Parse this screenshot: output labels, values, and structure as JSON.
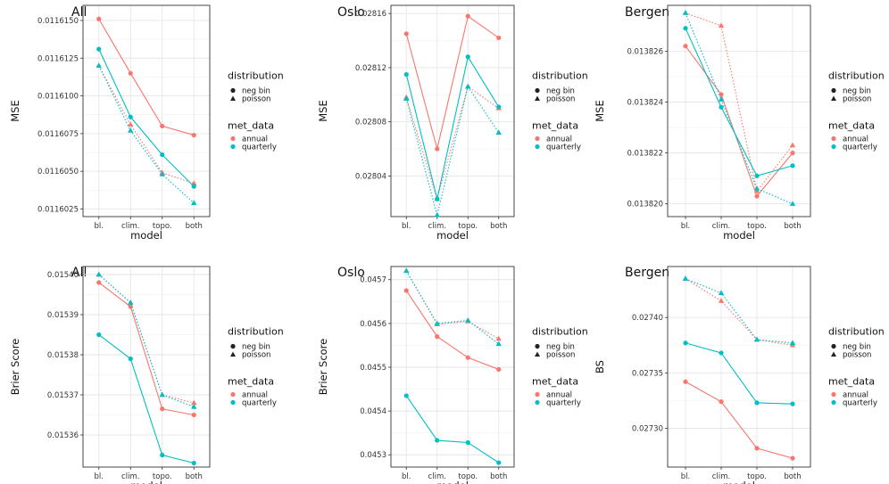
{
  "colors": {
    "annual": "#f8766d",
    "quarterly": "#00bfc4",
    "grid": "#e6e6e6",
    "frame": "#333333"
  },
  "legend": {
    "distribution_title": "distribution",
    "distribution_items": [
      "neg bin",
      "poisson"
    ],
    "met_title": "met_data",
    "met_items": [
      "annual",
      "quarterly"
    ]
  },
  "chart_data": [
    {
      "type": "line",
      "title": "All",
      "xlabel": "model",
      "ylabel": "MSE",
      "categories": [
        "bl.",
        "clim.",
        "topo.",
        "both"
      ],
      "ylim": [
        0.011602,
        0.011616
      ],
      "yticks": [
        0.0116025,
        0.011605,
        0.0116075,
        0.01161,
        0.0116125,
        0.011615
      ],
      "ytick_labels": [
        "0.0116025",
        "0.0116050",
        "0.0116075",
        "0.0116100",
        "0.0116125",
        "0.0116150"
      ],
      "grid": true,
      "legend": "right",
      "series": [
        {
          "distribution": "neg bin",
          "met_data": "annual",
          "values": [
            0.0116151,
            0.0116115,
            0.011608,
            0.0116074
          ]
        },
        {
          "distribution": "poisson",
          "met_data": "annual",
          "values": [
            0.011612,
            0.0116081,
            0.0116049,
            0.0116042
          ]
        },
        {
          "distribution": "neg bin",
          "met_data": "quarterly",
          "values": [
            0.0116131,
            0.0116086,
            0.0116061,
            0.011604
          ]
        },
        {
          "distribution": "poisson",
          "met_data": "quarterly",
          "values": [
            0.011612,
            0.0116077,
            0.0116048,
            0.0116029
          ]
        }
      ]
    },
    {
      "type": "line",
      "title": "Oslo",
      "xlabel": "model",
      "ylabel": "MSE",
      "categories": [
        "bl.",
        "clim.",
        "topo.",
        "both"
      ],
      "ylim": [
        0.02801,
        0.028166
      ],
      "yticks": [
        0.02804,
        0.02808,
        0.02812,
        0.02816
      ],
      "ytick_labels": [
        "0.02804",
        "0.02808",
        "0.02812",
        "0.02816"
      ],
      "grid": true,
      "legend": "right",
      "series": [
        {
          "distribution": "neg bin",
          "met_data": "annual",
          "values": [
            0.028145,
            0.02806,
            0.028158,
            0.028142
          ]
        },
        {
          "distribution": "poisson",
          "met_data": "annual",
          "values": [
            0.028098,
            0.028023,
            0.028106,
            0.02809
          ]
        },
        {
          "distribution": "neg bin",
          "met_data": "quarterly",
          "values": [
            0.028115,
            0.028023,
            0.028128,
            0.028091
          ]
        },
        {
          "distribution": "poisson",
          "met_data": "quarterly",
          "values": [
            0.028097,
            0.028011,
            0.028106,
            0.028072
          ]
        }
      ]
    },
    {
      "type": "line",
      "title": "Bergen",
      "xlabel": "model",
      "ylabel": "MSE",
      "categories": [
        "bl.",
        "clim.",
        "topo.",
        "both"
      ],
      "ylim": [
        0.0138195,
        0.0138278
      ],
      "yticks": [
        0.01382,
        0.013822,
        0.013824,
        0.013826
      ],
      "ytick_labels": [
        "0.013820",
        "0.013822",
        "0.013824",
        "0.013826"
      ],
      "grid": true,
      "legend": "right",
      "series": [
        {
          "distribution": "neg bin",
          "met_data": "annual",
          "values": [
            0.0138262,
            0.0138243,
            0.0138203,
            0.013822
          ]
        },
        {
          "distribution": "poisson",
          "met_data": "annual",
          "values": [
            0.0138275,
            0.013827,
            0.0138205,
            0.0138223
          ]
        },
        {
          "distribution": "neg bin",
          "met_data": "quarterly",
          "values": [
            0.0138269,
            0.0138238,
            0.0138211,
            0.0138215
          ]
        },
        {
          "distribution": "poisson",
          "met_data": "quarterly",
          "values": [
            0.0138275,
            0.0138241,
            0.0138206,
            0.01382
          ]
        }
      ]
    },
    {
      "type": "line",
      "title": "All",
      "xlabel": "model",
      "ylabel": "Brier Score",
      "categories": [
        "bl.",
        "clim.",
        "topo.",
        "both"
      ],
      "ylim": [
        0.015352,
        0.015402
      ],
      "yticks": [
        0.01536,
        0.01537,
        0.01538,
        0.01539,
        0.0154
      ],
      "ytick_labels": [
        "0.01536",
        "0.01537",
        "0.01538",
        "0.01539",
        "0.01540"
      ],
      "grid": true,
      "legend": "right",
      "series": [
        {
          "distribution": "neg bin",
          "met_data": "annual",
          "values": [
            0.015398,
            0.015392,
            0.0153665,
            0.015365
          ]
        },
        {
          "distribution": "poisson",
          "met_data": "annual",
          "values": [
            0.0154,
            0.015393,
            0.01537,
            0.015368
          ]
        },
        {
          "distribution": "neg bin",
          "met_data": "quarterly",
          "values": [
            0.015385,
            0.015379,
            0.015355,
            0.015353
          ]
        },
        {
          "distribution": "poisson",
          "met_data": "quarterly",
          "values": [
            0.0154,
            0.015393,
            0.01537,
            0.015367
          ]
        }
      ]
    },
    {
      "type": "line",
      "title": "Oslo",
      "xlabel": "model",
      "ylabel": "Brier Score",
      "categories": [
        "bl.",
        "clim.",
        "topo.",
        "both"
      ],
      "ylim": [
        0.045272,
        0.04573
      ],
      "yticks": [
        0.0453,
        0.0454,
        0.0455,
        0.0456,
        0.0457
      ],
      "ytick_labels": [
        "0.0453",
        "0.0454",
        "0.0455",
        "0.0456",
        "0.0457"
      ],
      "grid": true,
      "legend": "right",
      "series": [
        {
          "distribution": "neg bin",
          "met_data": "annual",
          "values": [
            0.045675,
            0.04557,
            0.045522,
            0.045495
          ]
        },
        {
          "distribution": "poisson",
          "met_data": "annual",
          "values": [
            0.04572,
            0.045598,
            0.045605,
            0.045565
          ]
        },
        {
          "distribution": "neg bin",
          "met_data": "quarterly",
          "values": [
            0.045435,
            0.045333,
            0.045328,
            0.045282
          ]
        },
        {
          "distribution": "poisson",
          "met_data": "quarterly",
          "values": [
            0.04572,
            0.0456,
            0.045607,
            0.045553
          ]
        }
      ]
    },
    {
      "type": "line",
      "title": "Bergen",
      "xlabel": "model",
      "ylabel": "BS",
      "categories": [
        "bl.",
        "clim.",
        "topo.",
        "both"
      ],
      "ylim": [
        0.027265,
        0.027446
      ],
      "yticks": [
        0.0273,
        0.02735,
        0.0274
      ],
      "ytick_labels": [
        "0.02730",
        "0.02735",
        "0.02740"
      ],
      "grid": true,
      "legend": "right",
      "series": [
        {
          "distribution": "neg bin",
          "met_data": "annual",
          "values": [
            0.027342,
            0.027324,
            0.027282,
            0.027273
          ]
        },
        {
          "distribution": "poisson",
          "met_data": "annual",
          "values": [
            0.027435,
            0.027415,
            0.02738,
            0.027375
          ]
        },
        {
          "distribution": "neg bin",
          "met_data": "quarterly",
          "values": [
            0.027377,
            0.027368,
            0.027323,
            0.027322
          ]
        },
        {
          "distribution": "poisson",
          "met_data": "quarterly",
          "values": [
            0.027435,
            0.027422,
            0.02738,
            0.027377
          ]
        }
      ]
    }
  ]
}
